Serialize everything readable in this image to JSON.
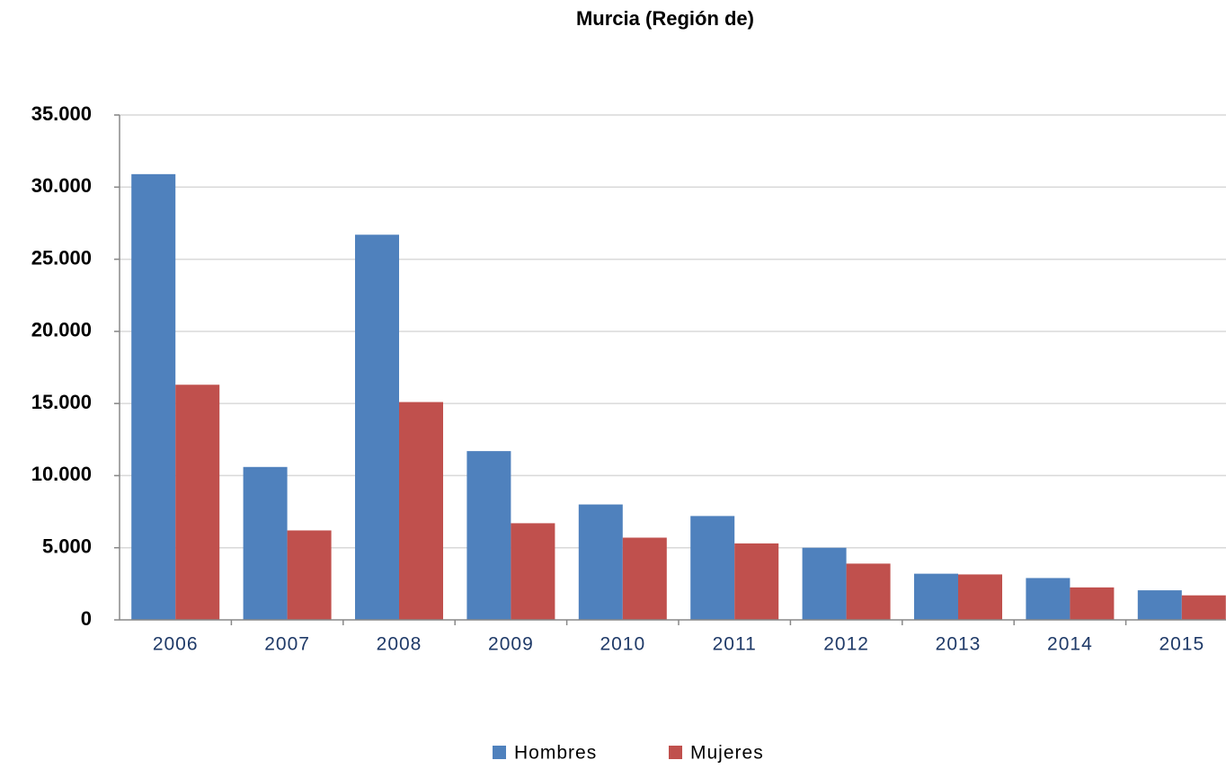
{
  "chart_data": {
    "type": "bar",
    "title": "Murcia (Región de)",
    "categories": [
      "2006",
      "2007",
      "2008",
      "2009",
      "2010",
      "2011",
      "2012",
      "2013",
      "2014",
      "2015"
    ],
    "series": [
      {
        "name": "Hombres",
        "color": "#4f81bd",
        "values": [
          30900,
          10600,
          26700,
          11700,
          8000,
          7200,
          5000,
          3200,
          2900,
          2050
        ]
      },
      {
        "name": "Mujeres",
        "color": "#c0504d",
        "values": [
          16300,
          6200,
          15100,
          6700,
          5700,
          5300,
          3900,
          3150,
          2250,
          1700
        ]
      }
    ],
    "ylim": [
      0,
      35000
    ],
    "yticks": [
      0,
      {
        "value": 5000,
        "label": "5.000"
      },
      {
        "value": 10000,
        "label": "10.000"
      },
      {
        "value": 15000,
        "label": "15.000"
      },
      {
        "value": 20000,
        "label": "20.000"
      },
      {
        "value": 25000,
        "label": "25.000"
      },
      {
        "value": 30000,
        "label": "30.000"
      },
      {
        "value": 35000,
        "label": "35.000"
      }
    ],
    "grid": true,
    "legend": "bottom"
  }
}
